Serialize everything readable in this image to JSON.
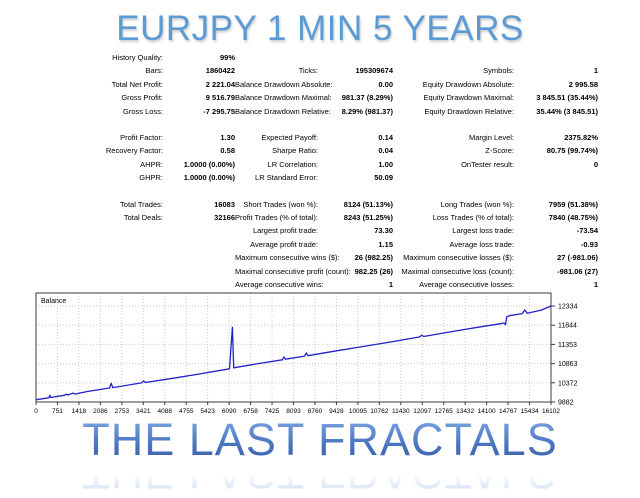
{
  "header": {
    "title": "EURJPY 1 MIN 5 YEARS",
    "color": "#5b9bd5"
  },
  "footer": {
    "title": "THE LAST FRACTALS",
    "color_top": "#7fa8e4",
    "color_bottom": "#3a5fa6"
  },
  "stats": {
    "sections": [
      {
        "rows": [
          [
            "History Quality:",
            "99%",
            "",
            "",
            "",
            ""
          ],
          [
            "Bars:",
            "1860422",
            "Ticks:",
            "195309674",
            "Symbols:",
            "1"
          ],
          [
            "Total Net Profit:",
            "2 221.04",
            "Balance Drawdown Absolute:",
            "0.00",
            "Equity Drawdown Absolute:",
            "2 995.58"
          ],
          [
            "Gross Profit:",
            "9 516.79",
            "Balance Drawdown Maximal:",
            "981.37 (8.29%)",
            "Equity Drawdown Maximal:",
            "3 845.51 (35.44%)"
          ],
          [
            "Gross Loss:",
            "-7 295.75",
            "Balance Drawdown Relative:",
            "8.29% (981.37)",
            "Equity Drawdown Relative:",
            "35.44% (3 845.51)"
          ]
        ]
      },
      {
        "rows": [
          [
            "Profit Factor:",
            "1.30",
            "Expected Payoff:",
            "0.14",
            "Margin Level:",
            "2375.82%"
          ],
          [
            "Recovery Factor:",
            "0.58",
            "Sharpe Ratio:",
            "0.04",
            "Z-Score:",
            "80.75 (99.74%)"
          ],
          [
            "AHPR:",
            "1.0000 (0.00%)",
            "LR Correlation:",
            "1.00",
            "OnTester result:",
            "0"
          ],
          [
            "GHPR:",
            "1.0000 (0.00%)",
            "LR Standard Error:",
            "50.09",
            "",
            ""
          ]
        ]
      },
      {
        "rows": [
          [
            "Total Trades:",
            "16083",
            "Short Trades (won %):",
            "8124 (51.13%)",
            "Long Trades (won %):",
            "7959 (51.38%)"
          ],
          [
            "Total Deals:",
            "32166",
            "Profit Trades (% of total):",
            "8243 (51.25%)",
            "Loss Trades (% of total):",
            "7840 (48.75%)"
          ],
          [
            "",
            "",
            "Largest profit trade:",
            "73.30",
            "Largest loss trade:",
            "-73.54"
          ],
          [
            "",
            "",
            "Average profit trade:",
            "1.15",
            "Average loss trade:",
            "-0.93"
          ],
          [
            "",
            "",
            "Maximum consecutive wins ($):",
            "26 (982.25)",
            "Maximum consecutive losses ($):",
            "27 (-981.06)"
          ],
          [
            "",
            "",
            "Maximal consecutive profit (count):",
            "982.25 (26)",
            "Maximal consecutive loss (count):",
            "-981.06 (27)"
          ],
          [
            "",
            "",
            "Average consecutive wins:",
            "1",
            "Average consecutive losses:",
            "1"
          ]
        ]
      }
    ]
  },
  "chart_data": {
    "type": "line",
    "title": "",
    "legend": [
      "Balance"
    ],
    "xlabel": "",
    "ylabel": "",
    "grid": true,
    "xlim": [
      0,
      16102
    ],
    "ylim": [
      9830,
      12680
    ],
    "x_ticks": [
      0,
      751,
      1418,
      2086,
      2753,
      3421,
      4088,
      4755,
      5423,
      6090,
      6758,
      7425,
      8093,
      8760,
      9428,
      10095,
      10762,
      11430,
      12097,
      12765,
      13432,
      14100,
      14767,
      15434,
      16102
    ],
    "y_ticks": [
      9882,
      10372,
      10863,
      11353,
      11844,
      12334
    ],
    "colors": {
      "line": "#2222c8",
      "grid": "#c9c9c9",
      "border": "#3c3c3c",
      "text": "#000000"
    },
    "series": [
      {
        "name": "Balance",
        "color": "#2222c8",
        "points": [
          [
            0,
            9940
          ],
          [
            400,
            9990
          ],
          [
            430,
            10055
          ],
          [
            460,
            9998
          ],
          [
            900,
            10055
          ],
          [
            950,
            10085
          ],
          [
            1000,
            10062
          ],
          [
            1160,
            10110
          ],
          [
            1220,
            10085
          ],
          [
            1600,
            10150
          ],
          [
            2300,
            10240
          ],
          [
            2350,
            10360
          ],
          [
            2400,
            10250
          ],
          [
            3300,
            10370
          ],
          [
            3360,
            10420
          ],
          [
            3420,
            10380
          ],
          [
            4300,
            10490
          ],
          [
            5200,
            10610
          ],
          [
            6050,
            10730
          ],
          [
            6140,
            11790
          ],
          [
            6180,
            10755
          ],
          [
            6900,
            10855
          ],
          [
            7700,
            10960
          ],
          [
            7750,
            11035
          ],
          [
            7800,
            10975
          ],
          [
            8400,
            11055
          ],
          [
            8450,
            11135
          ],
          [
            8500,
            11065
          ],
          [
            9400,
            11190
          ],
          [
            10300,
            11310
          ],
          [
            11200,
            11430
          ],
          [
            12000,
            11545
          ],
          [
            12060,
            11590
          ],
          [
            12120,
            11555
          ],
          [
            13000,
            11680
          ],
          [
            13800,
            11790
          ],
          [
            14500,
            11880
          ],
          [
            14640,
            11900
          ],
          [
            14680,
            11855
          ],
          [
            14720,
            12060
          ],
          [
            14800,
            12085
          ],
          [
            15200,
            12140
          ],
          [
            15280,
            12230
          ],
          [
            15360,
            12150
          ],
          [
            15800,
            12230
          ],
          [
            16102,
            12334
          ]
        ]
      }
    ]
  }
}
